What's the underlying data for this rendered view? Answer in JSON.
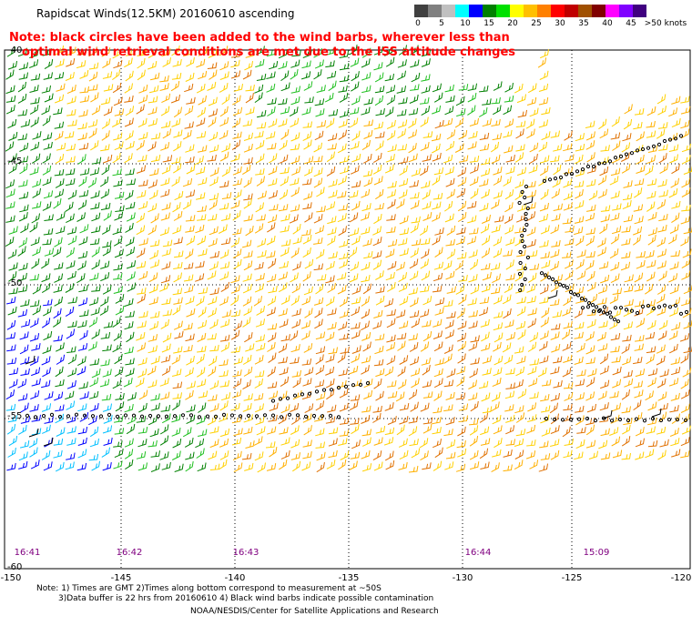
{
  "title": "Rapidscat Winds(12.5KM) 20160610 ascending",
  "note": {
    "line1": "Note: black circles have been added to the wind barbs, wherever less than",
    "line2": "optimal wind retrieval conditions are met due to the ISS attitude changes"
  },
  "colorbar": {
    "ticks": [
      "0",
      "5",
      "10",
      "15",
      "20",
      "25",
      "30",
      "35",
      "40",
      "45",
      ">50 knots"
    ],
    "colors": [
      "#404040",
      "#808080",
      "#c0c0c0",
      "#00ffff",
      "#0000ff",
      "#008000",
      "#00e000",
      "#ffff00",
      "#ffc000",
      "#ff8000",
      "#ff0000",
      "#c00000",
      "#a05000",
      "#800000",
      "#ff00ff",
      "#8000ff",
      "#400080"
    ]
  },
  "axes": {
    "lat_labels": [
      "-40",
      "-45",
      "-50",
      "-55",
      "-60"
    ],
    "lon_labels": [
      "-150",
      "-145",
      "-140",
      "-135",
      "-130",
      "-125",
      "-120"
    ]
  },
  "times": [
    "16:41",
    "16:42",
    "16:43",
    "16:44",
    "15:09"
  ],
  "footer": {
    "line1": "Note: 1) Times are GMT 2)Times along bottom correspond to measurement at ~50S",
    "line2": "3)Data buffer is 22 hrs from 20160610 4) Black wind barbs indicate possible contamination",
    "line3": "NOAA/NESDIS/Center for Satellite Applications and Research"
  },
  "barb_colors": {
    "yellow": "#ffd000",
    "gold": "#ffb000",
    "orange": "#e07000",
    "green": "#008000",
    "lime": "#20c020",
    "blue": "#0000ff",
    "cyan": "#00c0ff",
    "black": "#000000"
  }
}
